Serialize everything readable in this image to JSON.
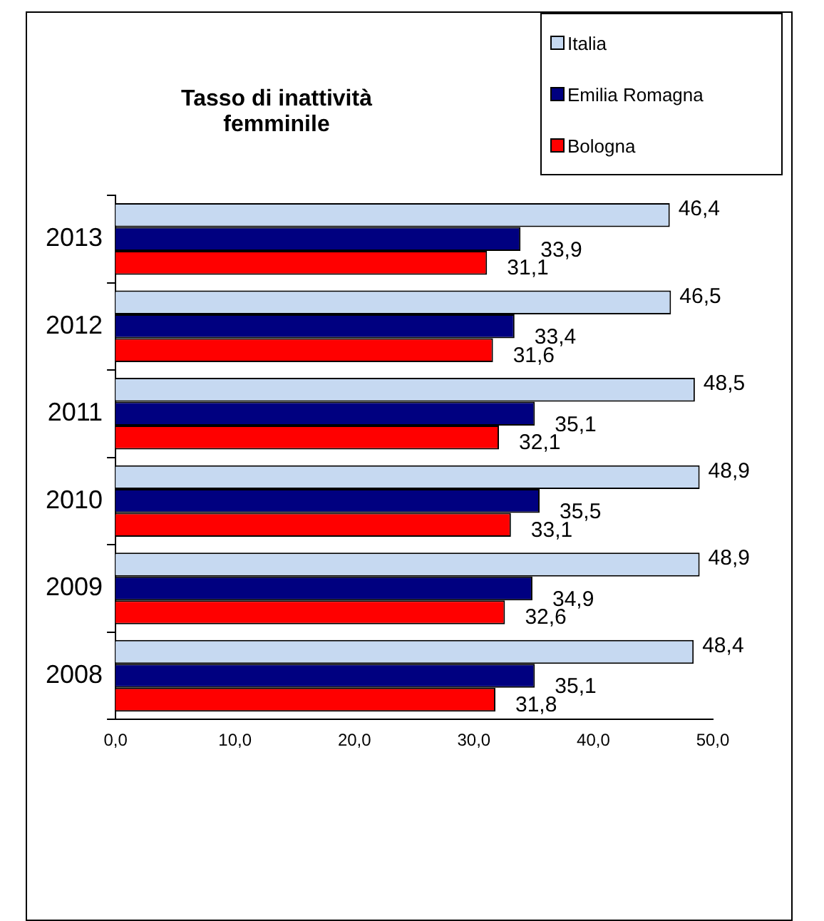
{
  "chart_data": {
    "type": "bar",
    "orientation": "horizontal",
    "title": "Tasso di inattività femminile",
    "categories": [
      "2013",
      "2012",
      "2011",
      "2010",
      "2009",
      "2008"
    ],
    "series": [
      {
        "name": "Italia",
        "color": "#c6d9f1",
        "values": [
          46.4,
          46.5,
          48.5,
          48.9,
          48.9,
          48.4
        ],
        "value_labels": [
          "46,4",
          "46,5",
          "48,5",
          "48,9",
          "48,9",
          "48,4"
        ]
      },
      {
        "name": "Emilia Romagna",
        "color": "#000080",
        "values": [
          33.9,
          33.4,
          35.1,
          35.5,
          34.9,
          35.1
        ],
        "value_labels": [
          "33,9",
          "33,4",
          "35,1",
          "35,5",
          "34,9",
          "35,1"
        ]
      },
      {
        "name": "Bologna",
        "color": "#ff0000",
        "values": [
          31.1,
          31.6,
          32.1,
          33.1,
          32.6,
          31.8
        ],
        "value_labels": [
          "31,1",
          "31,6",
          "32,1",
          "33,1",
          "32,6",
          "31,8"
        ]
      }
    ],
    "xlim": [
      0,
      50
    ],
    "xticks": [
      {
        "value": 0,
        "label": "0,0"
      },
      {
        "value": 10,
        "label": "10,0"
      },
      {
        "value": 20,
        "label": "20,0"
      },
      {
        "value": 30,
        "label": "30,0"
      },
      {
        "value": 40,
        "label": "40,0"
      },
      {
        "value": 50,
        "label": "50,0"
      }
    ],
    "grid": false,
    "legend": "top right"
  }
}
